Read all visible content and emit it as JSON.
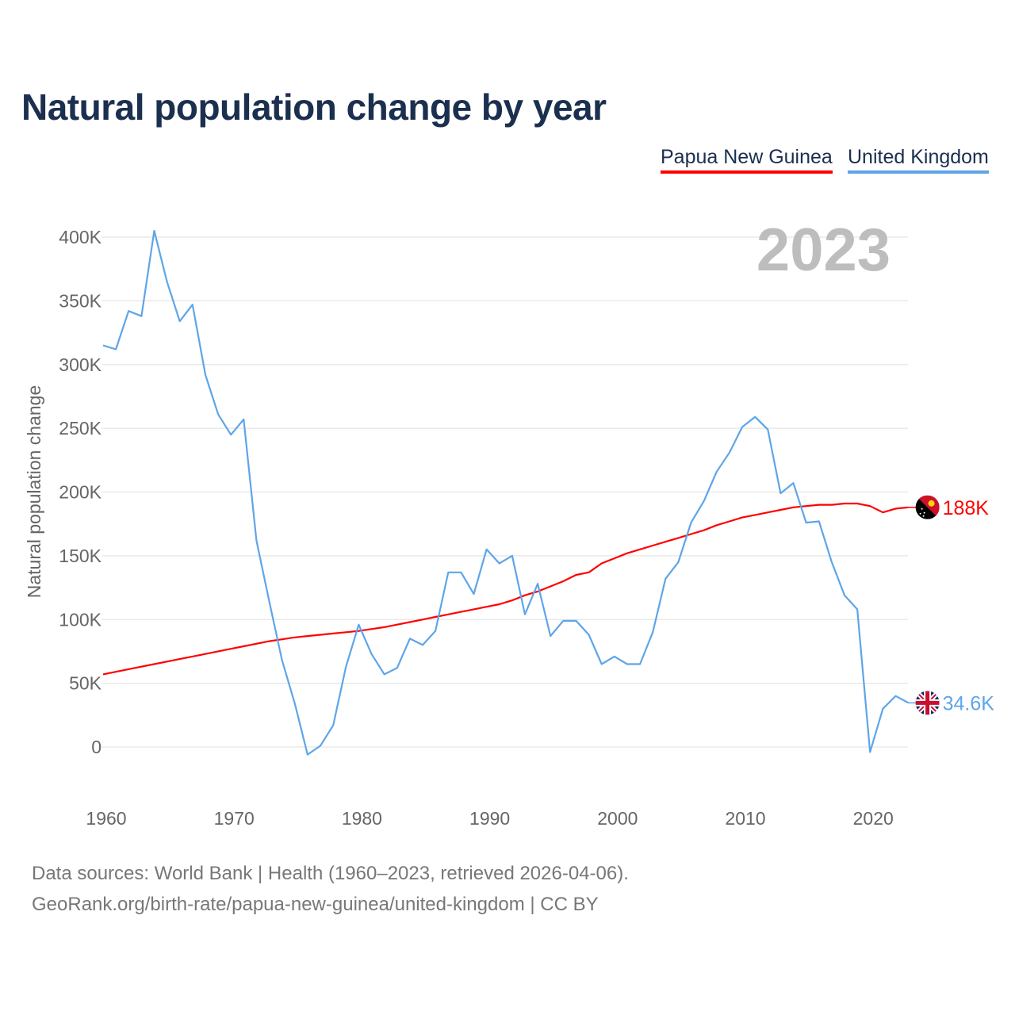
{
  "chart_data": {
    "type": "line",
    "title": "Natural population change by year",
    "xlabel": "",
    "ylabel": "Natural population change",
    "year_label": "2023",
    "x": [
      1960,
      1961,
      1962,
      1963,
      1964,
      1965,
      1966,
      1967,
      1968,
      1969,
      1970,
      1971,
      1972,
      1973,
      1974,
      1975,
      1976,
      1977,
      1978,
      1979,
      1980,
      1981,
      1982,
      1983,
      1984,
      1985,
      1986,
      1987,
      1988,
      1989,
      1990,
      1991,
      1992,
      1993,
      1994,
      1995,
      1996,
      1997,
      1998,
      1999,
      2000,
      2001,
      2002,
      2003,
      2004,
      2005,
      2006,
      2007,
      2008,
      2009,
      2010,
      2011,
      2012,
      2013,
      2014,
      2015,
      2016,
      2017,
      2018,
      2019,
      2020,
      2021,
      2022,
      2023
    ],
    "xlim": [
      1960,
      2023
    ],
    "ylim": [
      -30000,
      420000
    ],
    "xticks": [
      1960,
      1970,
      1980,
      1990,
      2000,
      2010,
      2020
    ],
    "yticks": [
      0,
      50000,
      100000,
      150000,
      200000,
      250000,
      300000,
      350000,
      400000
    ],
    "ytick_labels": [
      "0",
      "50K",
      "100K",
      "150K",
      "200K",
      "250K",
      "300K",
      "350K",
      "400K"
    ],
    "grid": true,
    "legend_position": "top-right",
    "series": [
      {
        "name": "Papua New Guinea",
        "color": "#ff0000",
        "end_label": "188K",
        "flag": "papua-new-guinea-flag",
        "values": [
          57000,
          59000,
          61000,
          63000,
          65000,
          67000,
          69000,
          71000,
          73000,
          75000,
          77000,
          79000,
          81000,
          83000,
          84500,
          86000,
          87000,
          88000,
          89000,
          90000,
          91000,
          92500,
          94000,
          96000,
          98000,
          100000,
          102000,
          104000,
          106000,
          108000,
          110000,
          112000,
          115000,
          119000,
          122000,
          126000,
          130000,
          135000,
          137000,
          144000,
          148000,
          152000,
          155000,
          158000,
          161000,
          164000,
          167000,
          170000,
          174000,
          177000,
          180000,
          182000,
          184000,
          186000,
          188000,
          189000,
          190000,
          190000,
          191000,
          191000,
          189000,
          184000,
          187000,
          188000
        ]
      },
      {
        "name": "United Kingdom",
        "color": "#5ea5e8",
        "end_label": "34.6K",
        "flag": "united-kingdom-flag",
        "values": [
          315000,
          312000,
          342000,
          338000,
          405000,
          365000,
          334000,
          347000,
          292000,
          261000,
          245000,
          257000,
          162000,
          114000,
          68000,
          34000,
          -6000,
          1000,
          17000,
          63000,
          96000,
          73000,
          57000,
          62000,
          85000,
          80000,
          91000,
          137000,
          137000,
          120000,
          155000,
          144000,
          150000,
          104000,
          128000,
          87000,
          99000,
          99000,
          88000,
          65000,
          71000,
          65000,
          65000,
          90000,
          132000,
          145000,
          176000,
          193000,
          216000,
          231000,
          251000,
          259000,
          249000,
          199000,
          207000,
          176000,
          177000,
          145000,
          119000,
          108000,
          -4000,
          30000,
          40000,
          34600
        ]
      }
    ]
  },
  "footer": {
    "line1": "Data sources: World Bank | Health (1960–2023, retrieved 2026-04-06).",
    "line2": "GeoRank.org/birth-rate/papua-new-guinea/united-kingdom | CC BY"
  }
}
